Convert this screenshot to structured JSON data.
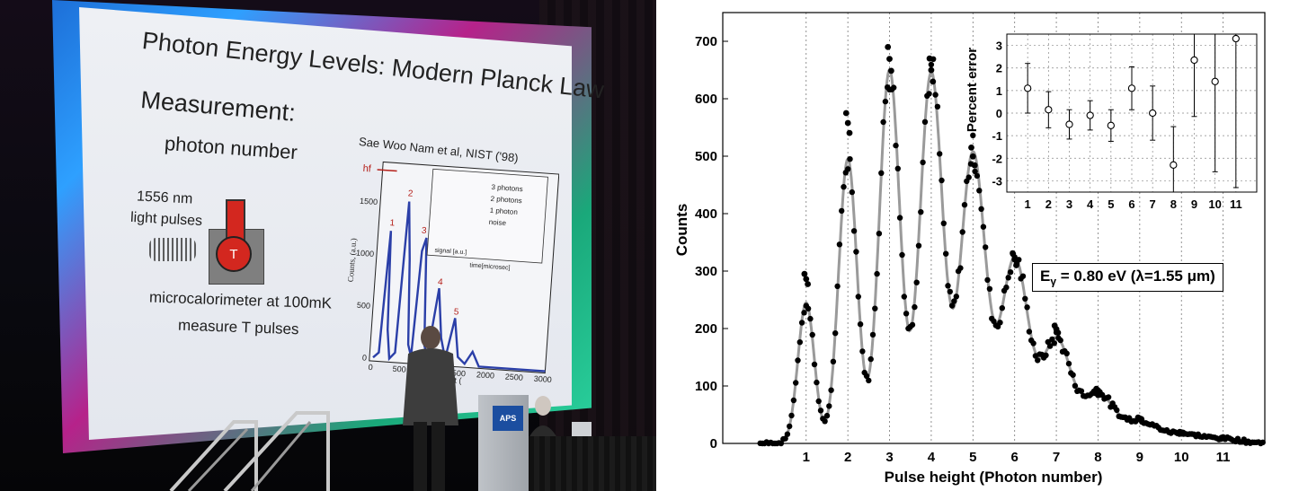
{
  "photo": {
    "slide_title": "Photon Energy Levels: Modern Planck Law",
    "measurement": "Measurement:",
    "photon_number": "photon number",
    "light_pulses_1": "1556 nm",
    "light_pulses_2": "light pulses",
    "thermometer_label": "T",
    "micro_1": "microcalorimeter at 100mK",
    "micro_2": "measure T pulses",
    "citation": "Sae Woo Nam et al, NIST ('98)",
    "hf_label": "hf",
    "podium_sign": "APS",
    "slide_plot": {
      "peak_labels": [
        "1",
        "2",
        "3",
        "4",
        "5"
      ],
      "y_ticks": [
        "0",
        "500",
        "1000",
        "1500"
      ],
      "x_ticks": [
        "0",
        "500",
        "1000",
        "1500",
        "2000",
        "2500",
        "3000"
      ],
      "ylabel": "Counts, (a.u.)",
      "inset_labels": [
        "3 photons",
        "2 photons",
        "1 photon",
        "noise"
      ],
      "inset_ylabel": "signal [a.u.]",
      "inset_xlabel": "time[microsec]",
      "xlabel_partial": "height ("
    }
  },
  "chart": {
    "energy_label_pre": "E",
    "energy_label_sub": "γ",
    "energy_label_post": " = 0.80 eV (λ=1.55 μm)",
    "colors": {
      "data": "#000000",
      "fit": "#9a9a9a",
      "grid": "#777777"
    }
  },
  "chart_data": [
    {
      "type": "scatter",
      "title": "",
      "xlabel": "Pulse height (Photon number)",
      "ylabel": "Counts",
      "xlim": [
        -1,
        12
      ],
      "ylim": [
        0,
        750
      ],
      "x_ticks": [
        1,
        2,
        3,
        4,
        5,
        6,
        7,
        8,
        9,
        10,
        11
      ],
      "y_ticks": [
        0,
        100,
        200,
        300,
        400,
        500,
        600,
        700
      ],
      "grid": "vertical dotted at integer photon numbers",
      "series": [
        {
          "style": "black dots (data)",
          "peak_x": [
            1,
            2,
            3,
            4,
            5,
            6,
            7,
            8,
            9,
            10,
            11
          ],
          "peak_counts": [
            295,
            575,
            690,
            670,
            515,
            330,
            205,
            95,
            45,
            20,
            10
          ]
        },
        {
          "style": "gray line (fit)",
          "peak_x": [
            1,
            2,
            3,
            4,
            5,
            6,
            7,
            8,
            9,
            10,
            11
          ],
          "peak_counts": [
            245,
            495,
            650,
            645,
            505,
            320,
            180,
            85,
            38,
            16,
            8
          ]
        }
      ],
      "annotation": "Eγ = 0.80 eV (λ=1.55 μm)"
    },
    {
      "type": "scatter",
      "title": "",
      "xlabel": "",
      "ylabel": "Percent error",
      "xlim": [
        0,
        12
      ],
      "ylim": [
        -3.5,
        3.5
      ],
      "x_ticks": [
        1,
        2,
        3,
        4,
        5,
        6,
        7,
        8,
        9,
        10,
        11
      ],
      "y_ticks": [
        -3,
        -2,
        -1,
        0,
        1,
        2,
        3
      ],
      "grid": "dotted both axes",
      "x": [
        1,
        2,
        3,
        4,
        5,
        6,
        7,
        8,
        9,
        10,
        11
      ],
      "y": [
        1.1,
        0.15,
        -0.5,
        -0.1,
        -0.55,
        1.1,
        0.0,
        -2.3,
        2.35,
        1.4,
        3.3
      ],
      "err": [
        1.1,
        0.8,
        0.65,
        0.65,
        0.7,
        0.95,
        1.2,
        1.7,
        2.5,
        4.0,
        6.6
      ]
    }
  ]
}
